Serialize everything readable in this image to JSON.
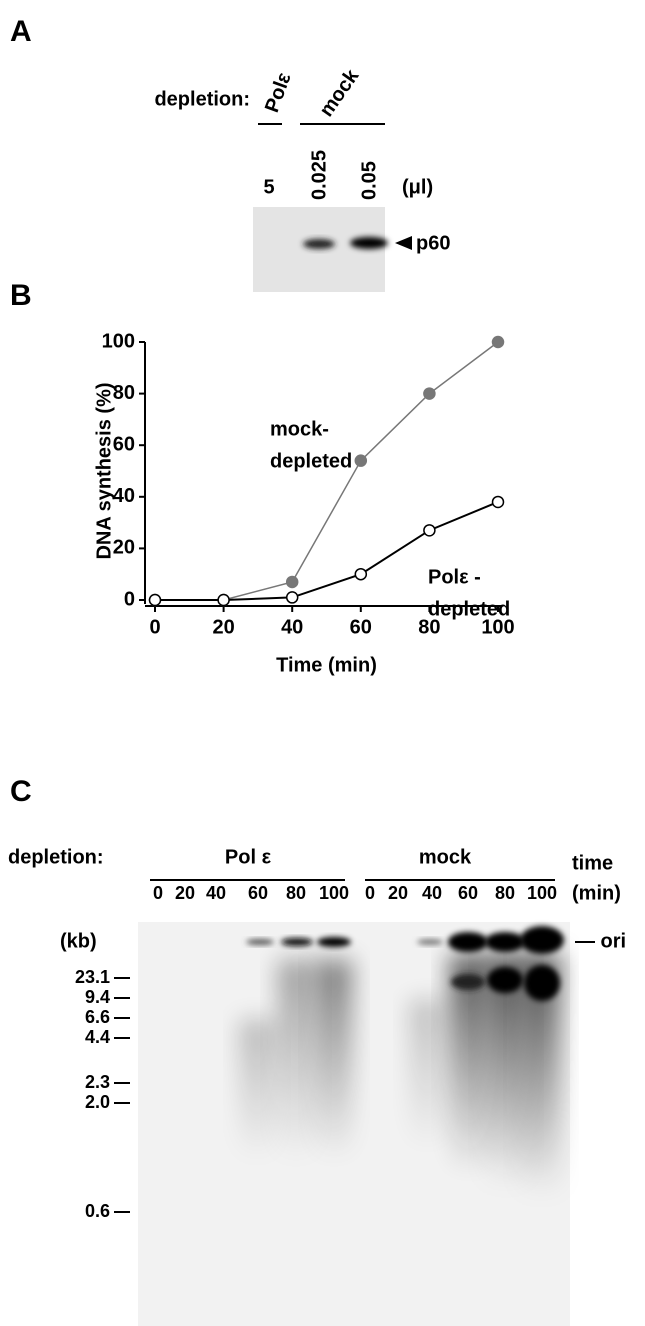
{
  "panel_a": {
    "label": "A",
    "depletion_label": "depletion:",
    "groups": [
      "Polε",
      "mock"
    ],
    "lanes": [
      "5",
      "0.025",
      "0.05"
    ],
    "unit": "(μl)",
    "band_label": "p60"
  },
  "chart_data": {
    "type": "line",
    "panel_label": "B",
    "x_label": "Time (min)",
    "y_label": "DNA synthesis (%)",
    "x": [
      0,
      20,
      40,
      60,
      80,
      100
    ],
    "series": [
      {
        "label_lines": [
          "mock-",
          "depleted"
        ],
        "color": "#777777",
        "marker_fill": "#777777",
        "values": [
          0,
          0,
          7,
          54,
          80,
          100
        ]
      },
      {
        "label_lines": [
          "Polε -",
          "depleted"
        ],
        "color": "#000000",
        "marker_fill": "#ffffff",
        "values": [
          0,
          0,
          1,
          10,
          27,
          38
        ]
      }
    ],
    "xlim": [
      0,
      100
    ],
    "xticks": [
      0,
      20,
      40,
      60,
      80,
      100
    ],
    "ylim": [
      0,
      100
    ],
    "yticks": [
      0,
      20,
      40,
      60,
      80,
      100
    ]
  },
  "panel_c": {
    "label": "C",
    "depletion_label": "depletion:",
    "groups": [
      "Pol ε",
      "mock"
    ],
    "time_label": [
      "time",
      "(min)"
    ],
    "lanes": [
      "0",
      "20",
      "40",
      "60",
      "80",
      "100",
      "0",
      "20",
      "40",
      "60",
      "80",
      "100"
    ],
    "size_unit": "(kb)",
    "markers": [
      "23.1",
      "9.4",
      "6.6",
      "4.4",
      "2.3",
      "2.0",
      "0.6"
    ],
    "ori_label": "— ori"
  }
}
